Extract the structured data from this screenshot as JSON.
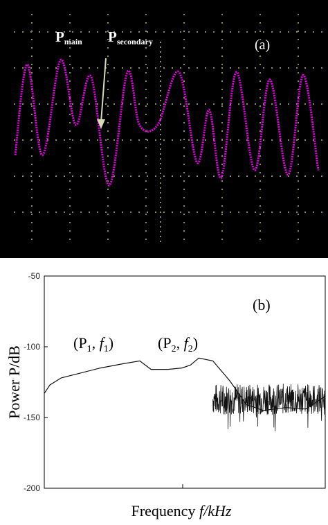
{
  "colors": {
    "scope_background": "#000000",
    "scope_trace": "#e000e0",
    "scope_grid": "#8a8a5a",
    "arrow": "#d8d8b8",
    "scope_text": "#ffffff",
    "spectrum_line": "#111111"
  },
  "chart_data": [
    {
      "type": "line",
      "panel_label": "(a)",
      "grid": true,
      "background": "black",
      "annotations": {
        "p_main": {
          "base": "P",
          "sub": "main"
        },
        "p_secondary": {
          "base": "P",
          "sub": "secondary"
        }
      },
      "arrow_points_to": "secondary peak",
      "series": [
        {
          "x": [
            0,
            0.04,
            0.09,
            0.15,
            0.2,
            0.25,
            0.31,
            0.37,
            0.41,
            0.47,
            0.54,
            0.6,
            0.64,
            0.68,
            0.73,
            0.79,
            0.84,
            0.9,
            0.95,
            1.0
          ],
          "y": [
            0.35,
            0.95,
            0.35,
            0.98,
            0.55,
            0.87,
            0.15,
            0.9,
            0.55,
            0.55,
            0.9,
            0.3,
            0.65,
            0.2,
            0.9,
            0.25,
            0.85,
            0.22,
            0.88,
            0.25
          ]
        }
      ]
    },
    {
      "type": "line",
      "panel_label": "(b)",
      "xlabel_prefix": "Frequency ",
      "xlabel_var": "f",
      "xlabel_suffix": "/kHz",
      "ylabel": "Power P/dB",
      "ylim": [
        -200,
        -50
      ],
      "y_ticks": [
        "-50",
        "-100",
        "-150",
        "-200"
      ],
      "y_tick_values": [
        -50,
        -100,
        -150,
        -200
      ],
      "annotations": [
        {
          "text": "(P",
          "sub": "1",
          "sep": ", ",
          "var": "f",
          "var_sub": "1",
          "close": ")"
        },
        {
          "text": "(P",
          "sub": "2",
          "sep": ", ",
          "var": "f",
          "var_sub": "2",
          "close": ")"
        }
      ],
      "series": [
        {
          "x": [
            0,
            0.02,
            0.06,
            0.12,
            0.2,
            0.28,
            0.34,
            0.38,
            0.44,
            0.49,
            0.52,
            0.55,
            0.6,
            0.66,
            0.72,
            0.78,
            0.86,
            0.93,
            1.0
          ],
          "y": [
            -133,
            -127,
            -122,
            -119,
            -115,
            -112,
            -110,
            -116,
            -116,
            -115,
            -113,
            -108,
            -110,
            -124,
            -141,
            -145,
            -143,
            -144,
            -135
          ]
        }
      ]
    }
  ]
}
